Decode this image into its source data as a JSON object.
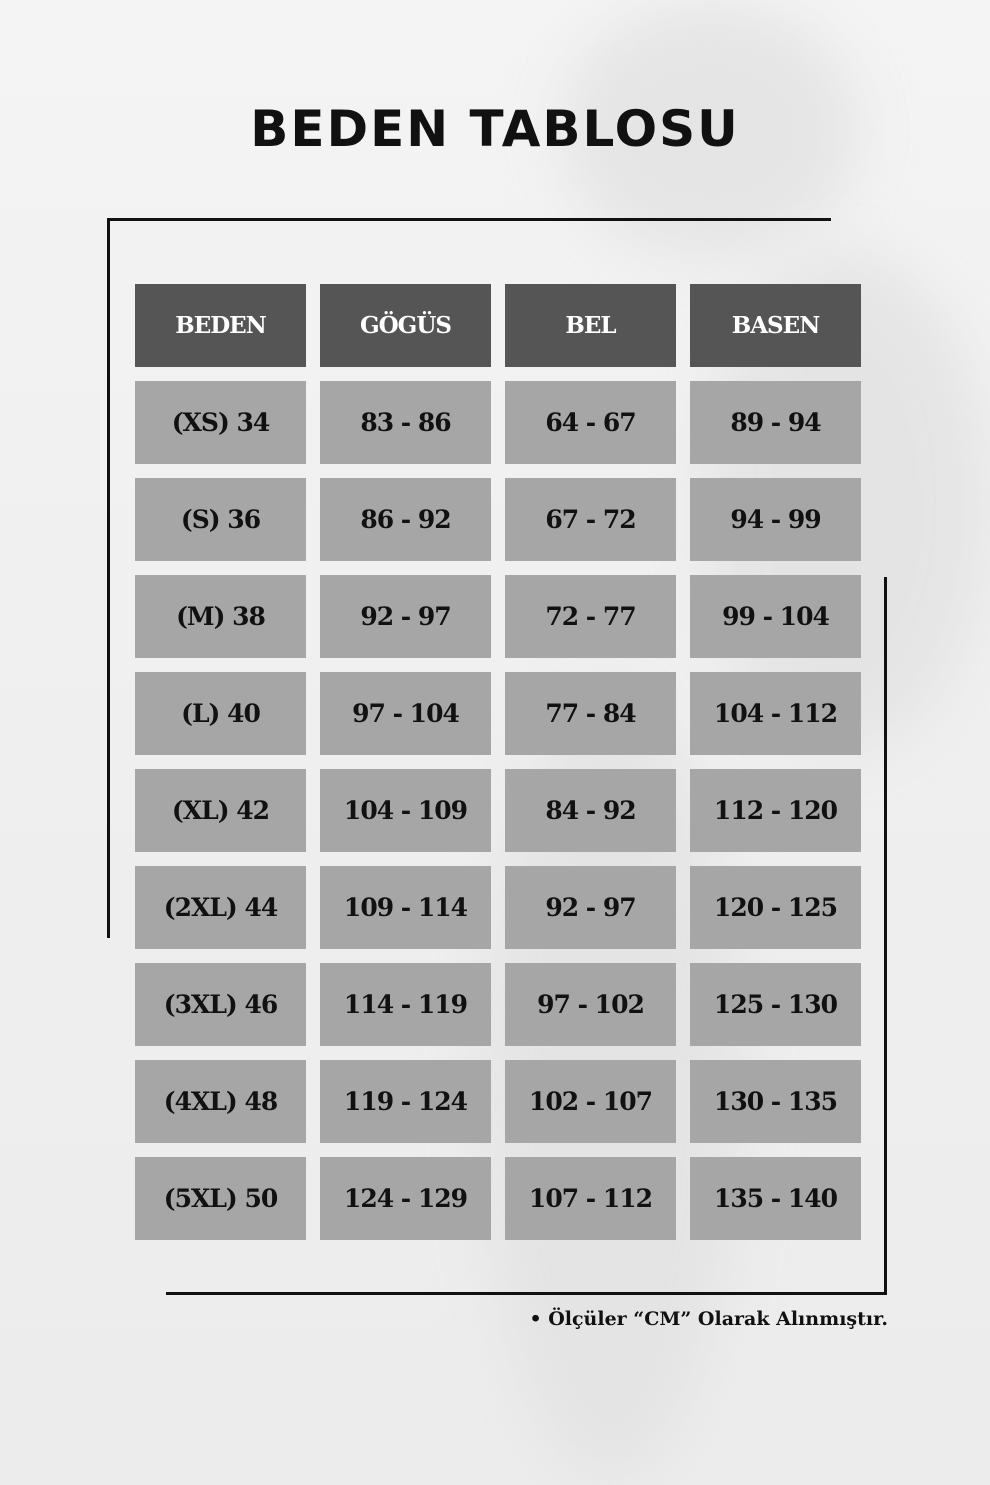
{
  "title": "BEDEN TABLOSU",
  "headers": [
    "BEDEN",
    "GÖGÜS",
    "BEL",
    "BASEN"
  ],
  "rows": [
    [
      "(XS) 34",
      "83 - 86",
      "64 - 67",
      "89 - 94"
    ],
    [
      "(S) 36",
      "86 - 92",
      "67 - 72",
      "94 - 99"
    ],
    [
      "(M) 38",
      "92 - 97",
      "72 - 77",
      "99 - 104"
    ],
    [
      "(L) 40",
      "97 - 104",
      "77 - 84",
      "104 - 112"
    ],
    [
      "(XL) 42",
      "104 - 109",
      "84 - 92",
      "112 - 120"
    ],
    [
      "(2XL) 44",
      "109 - 114",
      "92 - 97",
      "120 - 125"
    ],
    [
      "(3XL) 46",
      "114 - 119",
      "97 - 102",
      "125 - 130"
    ],
    [
      "(4XL) 48",
      "119 - 124",
      "102 - 107",
      "130 - 135"
    ],
    [
      "(5XL) 50",
      "124 - 129",
      "107 - 112",
      "135 - 140"
    ]
  ],
  "note": "• Ölçüler “CM” Olarak Alınmıştır.",
  "colors": {
    "header_bg": "#555555",
    "cell_bg": "#a6a6a6",
    "text": "#111111"
  }
}
